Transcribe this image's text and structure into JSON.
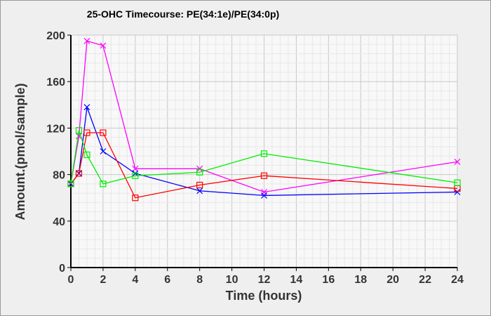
{
  "chart_data": {
    "type": "line",
    "title": "25-OHC Timecourse: PE(34:1e)/PE(34:0p)",
    "xlabel": "Time (hours)",
    "ylabel": "Amount.(pmol/sample)",
    "xlim": [
      0,
      24
    ],
    "ylim": [
      0,
      200
    ],
    "xticks": [
      0,
      2,
      4,
      6,
      8,
      10,
      12,
      14,
      16,
      18,
      20,
      22,
      24
    ],
    "yticks": [
      0,
      40,
      80,
      120,
      160,
      200
    ],
    "grid": true,
    "x": [
      0,
      0.5,
      1,
      2,
      4,
      8,
      12,
      24
    ],
    "series": [
      {
        "name": "magenta",
        "color": "#ff00ff",
        "marker": "x",
        "values": [
          72,
          113,
          195,
          191,
          85,
          85,
          65,
          91
        ]
      },
      {
        "name": "blue",
        "color": "#0000ff",
        "marker": "x",
        "values": [
          72,
          81,
          138,
          100,
          81,
          66,
          62,
          65
        ]
      },
      {
        "name": "red",
        "color": "#ff0000",
        "marker": "square",
        "values": [
          72,
          81,
          116,
          116,
          60,
          71,
          79,
          68
        ]
      },
      {
        "name": "green",
        "color": "#00ee00",
        "marker": "square",
        "values": [
          72,
          118,
          97,
          72,
          79,
          82,
          98,
          73
        ]
      }
    ]
  }
}
